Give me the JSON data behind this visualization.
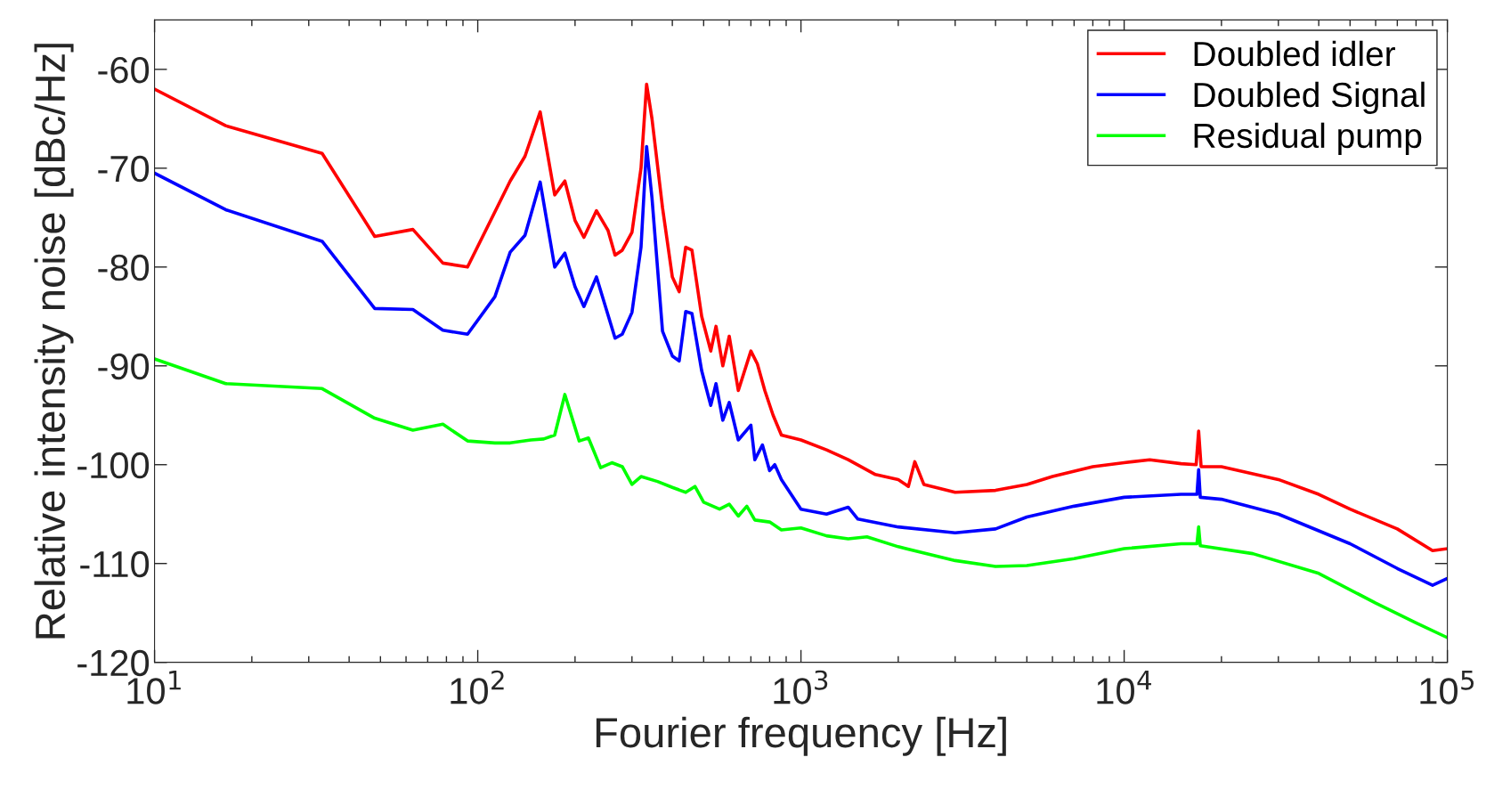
{
  "chart_data": {
    "type": "line",
    "xlabel": "Fourier frequency [Hz]",
    "ylabel": "Relative intensity noise [dBc/Hz]",
    "log": "x",
    "grid": false,
    "legend": "top right",
    "marker": "none",
    "line_style": "solid",
    "xlim": [
      10,
      100000
    ],
    "xticks": [
      {
        "value": 10,
        "label": "10$^{1}$"
      },
      {
        "value": 100,
        "label": "10$^{2}$"
      },
      {
        "value": 1000,
        "label": "10$^{3}$"
      },
      {
        "value": 10000,
        "label": "10$^{4}$"
      },
      {
        "value": 100000,
        "label": "10$^{5}$"
      }
    ],
    "ylim": [
      -120,
      -55
    ],
    "yticks": [
      -120,
      -110,
      -100,
      -90,
      -80,
      -70,
      -60
    ],
    "series": [
      {
        "name": "Doubled idler",
        "color": "#ff0000",
        "x": [
          10,
          16.6,
          33,
          48,
          63,
          78,
          93,
          126,
          140,
          156,
          173,
          186,
          200,
          213,
          233,
          253,
          266,
          280,
          300,
          320,
          333,
          346,
          373,
          400,
          420,
          440,
          460,
          493,
          526,
          546,
          573,
          600,
          640,
          700,
          733,
          773,
          820,
          870,
          1000,
          1200,
          1400,
          1700,
          2000,
          2150,
          2250,
          2400,
          3000,
          4000,
          5000,
          6000,
          8000,
          10000,
          12000,
          15000,
          16700,
          17000,
          17300,
          20000,
          30000,
          40000,
          50000,
          70000,
          90000,
          100000
        ],
        "values": [
          -62,
          -65.7,
          -68.5,
          -76.9,
          -76.2,
          -79.6,
          -80,
          -71.3,
          -68.8,
          -64.3,
          -72.7,
          -71.3,
          -75.3,
          -77,
          -74.3,
          -76.3,
          -78.8,
          -78.3,
          -76.5,
          -70,
          -61.5,
          -65,
          -74,
          -81,
          -82.5,
          -78,
          -78.3,
          -85,
          -88.5,
          -86,
          -90,
          -87,
          -92.5,
          -88.5,
          -89.8,
          -92.5,
          -95,
          -97,
          -97.5,
          -98.5,
          -99.5,
          -101,
          -101.5,
          -102.2,
          -99.7,
          -102,
          -102.8,
          -102.6,
          -102,
          -101.2,
          -100.2,
          -99.8,
          -99.5,
          -99.9,
          -100,
          -96.6,
          -100.2,
          -100.2,
          -101.5,
          -103,
          -104.5,
          -106.5,
          -108.7,
          -108.5
        ]
      },
      {
        "name": "Doubled Signal",
        "color": "#0000ff",
        "x": [
          10,
          16.6,
          33,
          48,
          63,
          78,
          93,
          113,
          126,
          140,
          156,
          173,
          186,
          200,
          213,
          233,
          266,
          280,
          300,
          320,
          333,
          346,
          373,
          400,
          420,
          440,
          460,
          493,
          526,
          546,
          573,
          600,
          640,
          700,
          720,
          760,
          800,
          830,
          870,
          1000,
          1200,
          1400,
          1500,
          2000,
          3000,
          4000,
          5000,
          7000,
          10000,
          15000,
          16800,
          17000,
          17200,
          20000,
          30000,
          50000,
          70000,
          90000,
          100000
        ],
        "values": [
          -70.5,
          -74.2,
          -77.4,
          -84.2,
          -84.3,
          -86.4,
          -86.8,
          -83,
          -78.5,
          -76.8,
          -71.4,
          -80,
          -78.6,
          -82,
          -84,
          -81,
          -87.2,
          -86.8,
          -84.6,
          -78,
          -67.8,
          -73,
          -86.5,
          -89,
          -89.5,
          -84.5,
          -84.7,
          -90.5,
          -94,
          -91.8,
          -95.5,
          -93.7,
          -97.5,
          -96,
          -99.5,
          -98,
          -100.6,
          -100,
          -101.5,
          -104.5,
          -105,
          -104.3,
          -105.5,
          -106.3,
          -106.9,
          -106.5,
          -105.3,
          -104.2,
          -103.3,
          -103,
          -103,
          -100.5,
          -103.3,
          -103.5,
          -105,
          -108,
          -110.5,
          -112.2,
          -111.5
        ]
      },
      {
        "name": "Residual pump",
        "color": "#00ff00",
        "x": [
          10,
          16.6,
          33,
          48,
          63,
          78,
          93,
          113,
          126,
          146,
          160,
          173,
          186,
          206,
          220,
          240,
          260,
          280,
          300,
          320,
          360,
          400,
          440,
          470,
          500,
          560,
          600,
          640,
          680,
          720,
          800,
          870,
          1000,
          1200,
          1400,
          1600,
          2000,
          3000,
          4000,
          5000,
          7000,
          10000,
          15000,
          16800,
          17000,
          17200,
          25000,
          40000,
          60000,
          80000,
          100000
        ],
        "values": [
          -89.3,
          -91.8,
          -92.3,
          -95.3,
          -96.5,
          -95.9,
          -97.6,
          -97.8,
          -97.8,
          -97.5,
          -97.4,
          -97,
          -92.9,
          -97.6,
          -97.3,
          -100.3,
          -99.8,
          -100.2,
          -102,
          -101.2,
          -101.7,
          -102.3,
          -102.8,
          -102.2,
          -103.8,
          -104.5,
          -104,
          -105.2,
          -104.2,
          -105.6,
          -105.8,
          -106.6,
          -106.4,
          -107.2,
          -107.5,
          -107.3,
          -108.3,
          -109.7,
          -110.3,
          -110.2,
          -109.5,
          -108.5,
          -108,
          -108,
          -106.3,
          -108.2,
          -109,
          -111,
          -114,
          -116,
          -117.5
        ]
      }
    ]
  }
}
